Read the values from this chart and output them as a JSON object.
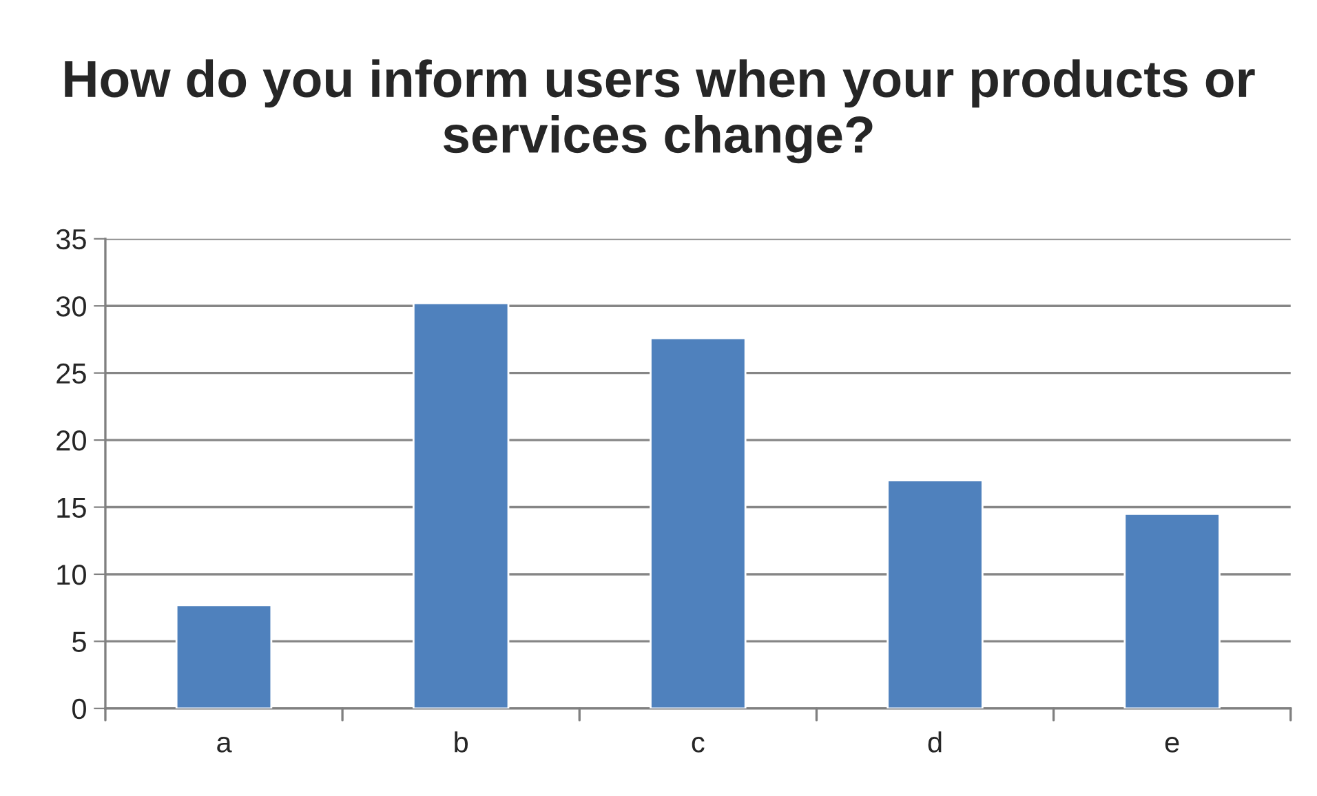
{
  "chart_data": {
    "type": "bar",
    "title": "How do you inform users when your products or services change?",
    "categories": [
      "a",
      "b",
      "c",
      "d",
      "e"
    ],
    "values": [
      7.7,
      30.2,
      27.6,
      17.0,
      14.5
    ],
    "color": "#4f81bd",
    "ylim": [
      0,
      35
    ],
    "yticks": [
      0,
      5,
      10,
      15,
      20,
      25,
      30,
      35
    ],
    "grid": "y"
  }
}
